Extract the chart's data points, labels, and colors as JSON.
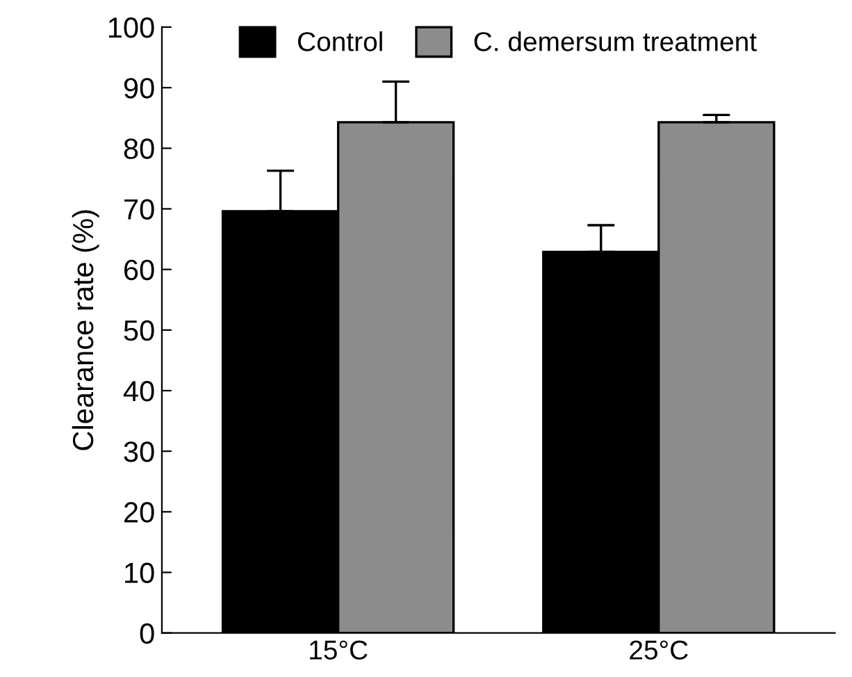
{
  "chart_data": {
    "type": "bar",
    "ylabel": "Clearance rate (%)",
    "categories": [
      "15°C",
      "25°C"
    ],
    "series": [
      {
        "name": "Control",
        "color": "#000000",
        "values": [
          69.6,
          62.9
        ],
        "errors": [
          [
            69.6,
            76.3
          ],
          [
            62.9,
            67.3
          ]
        ]
      },
      {
        "name": "C. demersum treatment",
        "color": "#8c8c8c",
        "values": [
          84.3,
          84.3
        ],
        "errors": [
          [
            84.3,
            91.0
          ],
          [
            84.3,
            85.5
          ]
        ]
      }
    ],
    "ylim": [
      0,
      100
    ],
    "yticks": [
      0,
      10,
      20,
      30,
      40,
      50,
      60,
      70,
      80,
      90,
      100
    ],
    "grid": false,
    "legend": "top"
  }
}
